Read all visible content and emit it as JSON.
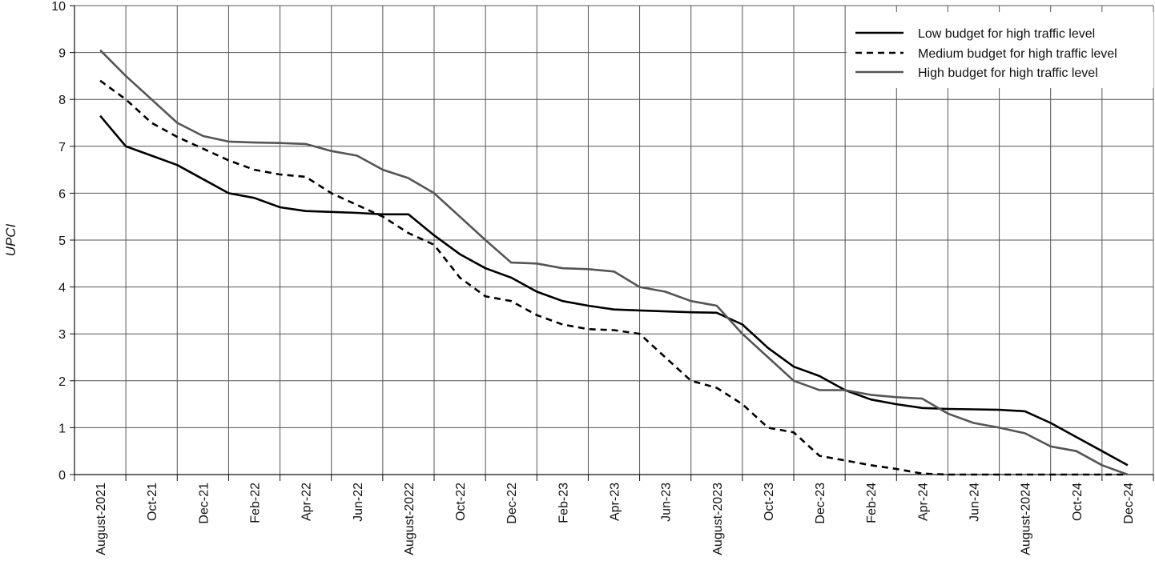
{
  "chart_data": {
    "type": "line",
    "title": "",
    "xlabel": "",
    "ylabel": "UPCI",
    "ylim": [
      0,
      10
    ],
    "yticks": [
      0,
      1,
      2,
      3,
      4,
      5,
      6,
      7,
      8,
      9,
      10
    ],
    "grid": true,
    "legend_position": "top-right",
    "x_tick_labels": [
      "August-2021",
      "Oct-21",
      "Dec-21",
      "Feb-22",
      "Apr-22",
      "Jun-22",
      "August-2022",
      "Oct-22",
      "Dec-22",
      "Feb-23",
      "Apr-23",
      "Jun-23",
      "August-2023",
      "Oct-23",
      "Dec-23",
      "Feb-24",
      "Apr-24",
      "Jun-24",
      "August-2024",
      "Oct-24",
      "Dec-24"
    ],
    "x_months": [
      "Aug-21",
      "Sep-21",
      "Oct-21",
      "Nov-21",
      "Dec-21",
      "Jan-22",
      "Feb-22",
      "Mar-22",
      "Apr-22",
      "May-22",
      "Jun-22",
      "Jul-22",
      "Aug-22",
      "Sep-22",
      "Oct-22",
      "Nov-22",
      "Dec-22",
      "Jan-23",
      "Feb-23",
      "Mar-23",
      "Apr-23",
      "May-23",
      "Jun-23",
      "Jul-23",
      "Aug-23",
      "Sep-23",
      "Oct-23",
      "Nov-23",
      "Dec-23",
      "Jan-24",
      "Feb-24",
      "Mar-24",
      "Apr-24",
      "May-24",
      "Jun-24",
      "Jul-24",
      "Aug-24",
      "Sep-24",
      "Oct-24",
      "Nov-24",
      "Dec-24"
    ],
    "series": [
      {
        "name": "Low budget for high traffic level",
        "color": "#000000",
        "dash": "solid",
        "values": [
          7.65,
          7.0,
          6.8,
          6.6,
          6.3,
          6.0,
          5.9,
          5.7,
          5.62,
          5.6,
          5.58,
          5.55,
          5.55,
          5.1,
          4.7,
          4.4,
          4.2,
          3.9,
          3.7,
          3.6,
          3.52,
          3.5,
          3.48,
          3.46,
          3.45,
          3.2,
          2.7,
          2.3,
          2.1,
          1.8,
          1.6,
          1.5,
          1.42,
          1.4,
          1.39,
          1.38,
          1.35,
          1.1,
          0.8,
          0.5,
          0.2
        ]
      },
      {
        "name": "Medium budget for high traffic level",
        "color": "#000000",
        "dash": "dashed",
        "values": [
          8.4,
          8.0,
          7.5,
          7.2,
          6.95,
          6.7,
          6.5,
          6.4,
          6.35,
          6.0,
          5.75,
          5.5,
          5.15,
          4.9,
          4.2,
          3.8,
          3.7,
          3.4,
          3.2,
          3.1,
          3.08,
          3.0,
          2.5,
          2.0,
          1.85,
          1.5,
          1.0,
          0.9,
          0.4,
          0.3,
          0.2,
          0.12,
          0.02,
          0.0,
          0.0,
          0.0,
          0.0,
          0.0,
          0.0,
          0.0,
          0.0
        ]
      },
      {
        "name": "High budget for high traffic level",
        "color": "#555555",
        "dash": "solid",
        "values": [
          9.05,
          8.5,
          8.0,
          7.5,
          7.22,
          7.1,
          7.08,
          7.07,
          7.05,
          6.9,
          6.8,
          6.5,
          6.32,
          6.0,
          5.5,
          5.0,
          4.52,
          4.5,
          4.4,
          4.38,
          4.33,
          4.0,
          3.9,
          3.7,
          3.6,
          3.0,
          2.5,
          2.0,
          1.8,
          1.8,
          1.7,
          1.65,
          1.62,
          1.3,
          1.1,
          1.0,
          0.88,
          0.6,
          0.5,
          0.2,
          0.0
        ]
      }
    ]
  }
}
